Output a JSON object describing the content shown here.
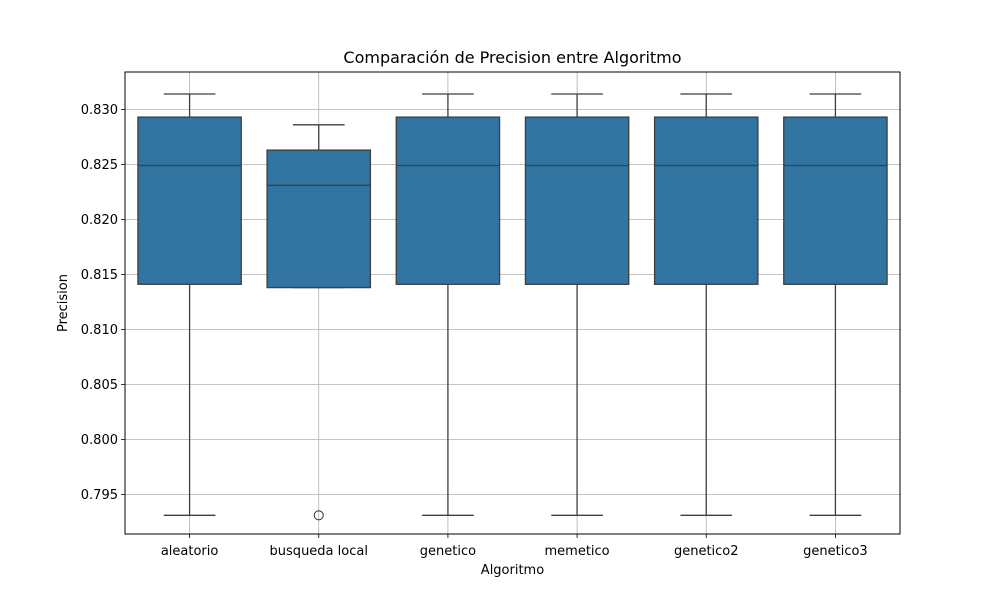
{
  "chart_data": {
    "type": "box",
    "title": "Comparación de Precision entre Algoritmo",
    "xlabel": "Algoritmo",
    "ylabel": "Precision",
    "ylim": [
      0.7914,
      0.8334
    ],
    "yticks": [
      "0.795",
      "0.800",
      "0.805",
      "0.810",
      "0.815",
      "0.820",
      "0.825",
      "0.830"
    ],
    "grid": true,
    "box_color": "#3274a1",
    "categories": [
      "aleatorio",
      "busqueda local",
      "genetico",
      "memetico",
      "genetico2",
      "genetico3"
    ],
    "boxes": [
      {
        "whislo": 0.7931,
        "q1": 0.8141,
        "med": 0.8249,
        "q3": 0.8293,
        "whishi": 0.8314,
        "fliers": []
      },
      {
        "whislo": 0.8138,
        "q1": 0.8138,
        "med": 0.8231,
        "q3": 0.8263,
        "whishi": 0.8286,
        "fliers": [
          0.7931
        ]
      },
      {
        "whislo": 0.7931,
        "q1": 0.8141,
        "med": 0.8249,
        "q3": 0.8293,
        "whishi": 0.8314,
        "fliers": []
      },
      {
        "whislo": 0.7931,
        "q1": 0.8141,
        "med": 0.8249,
        "q3": 0.8293,
        "whishi": 0.8314,
        "fliers": []
      },
      {
        "whislo": 0.7931,
        "q1": 0.8141,
        "med": 0.8249,
        "q3": 0.8293,
        "whishi": 0.8314,
        "fliers": []
      },
      {
        "whislo": 0.7931,
        "q1": 0.8141,
        "med": 0.8249,
        "q3": 0.8293,
        "whishi": 0.8314,
        "fliers": []
      }
    ]
  }
}
